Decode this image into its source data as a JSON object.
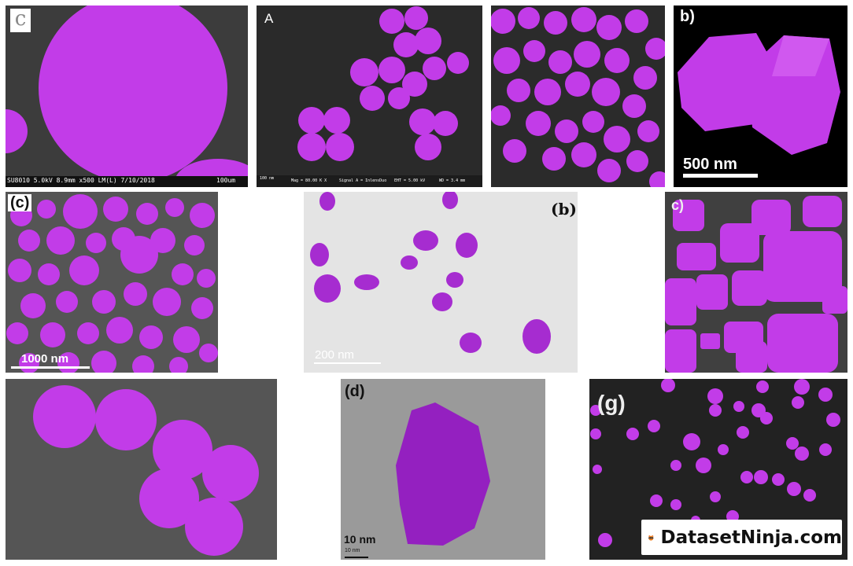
{
  "colors": {
    "particle": "#c23ce8",
    "particle_dark": "#a223c8",
    "sem_dark": "#2c2c2c",
    "tem_light": "#e2e2e2"
  },
  "panels": [
    {
      "label": "c",
      "footer_text": "SU8010 5.0kV 8.9mm x500 LM(L) 7/10/2018",
      "scale_text": "100um"
    },
    {
      "label": "A",
      "footer": {
        "mag": "Mag = 80.00 K X",
        "signal": "Signal A = InlensDuo",
        "eht": "EHT = 5.00 kV",
        "wd": "WD = 3.4 mm",
        "scale": "100 nm"
      }
    },
    {
      "label": ""
    },
    {
      "label": "b)",
      "scale_text": "500 nm"
    },
    {
      "label": "(c)",
      "scale_text": "1000 nm"
    },
    {
      "label": "(b)",
      "scale_text": "200 nm"
    },
    {
      "label": "c)"
    },
    {
      "label": ""
    },
    {
      "label": "(d)",
      "scale_text": "10 nm",
      "scale_small": "10 nm"
    },
    {
      "label": "(g)"
    }
  ],
  "brand": {
    "name": "DatasetNinja.com",
    "logo_icon": "ninja-cat-icon"
  }
}
